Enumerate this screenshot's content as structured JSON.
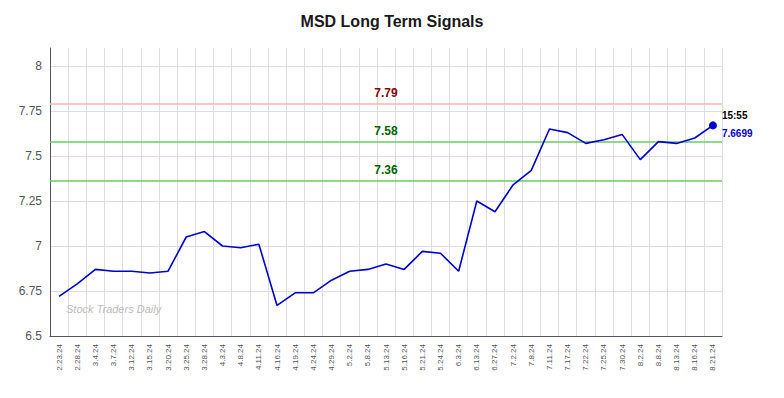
{
  "chart_data": {
    "type": "line",
    "title": "MSD Long Term Signals",
    "categories": [
      "2.23.24",
      "2.28.24",
      "3.4.24",
      "3.7.24",
      "3.12.24",
      "3.15.24",
      "3.20.24",
      "3.25.24",
      "3.28.24",
      "4.3.24",
      "4.8.24",
      "4.11.24",
      "4.16.24",
      "4.19.24",
      "4.24.24",
      "4.29.24",
      "5.2.24",
      "5.8.24",
      "5.13.24",
      "5.16.24",
      "5.21.24",
      "5.24.24",
      "6.3.24",
      "6.13.24",
      "6.27.24",
      "7.2.24",
      "7.8.24",
      "7.11.24",
      "7.17.24",
      "7.22.24",
      "7.25.24",
      "7.30.24",
      "8.2.24",
      "8.8.24",
      "8.13.24",
      "8.16.24",
      "8.21.24"
    ],
    "values": [
      6.72,
      6.79,
      6.87,
      6.86,
      6.86,
      6.85,
      6.86,
      7.05,
      7.08,
      7.0,
      6.99,
      7.01,
      6.67,
      6.74,
      6.74,
      6.81,
      6.86,
      6.87,
      6.9,
      6.87,
      6.97,
      6.96,
      6.86,
      7.25,
      7.19,
      7.34,
      7.42,
      7.65,
      7.63,
      7.57,
      7.59,
      7.62,
      7.48,
      7.58,
      7.57,
      7.6,
      7.67
    ],
    "color": "#0000cc",
    "ylim": [
      6.5,
      8.1
    ],
    "yticks": [
      6.5,
      6.75,
      7,
      7.25,
      7.5,
      7.75,
      8
    ],
    "grid": true,
    "hlines": [
      {
        "value": 7.79,
        "label": "7.79",
        "color": "#ffb3b3",
        "label_color": "#8b0000"
      },
      {
        "value": 7.58,
        "label": "7.58",
        "color": "#66cc66",
        "label_color": "#006400"
      },
      {
        "value": 7.36,
        "label": "7.36",
        "color": "#66cc66",
        "label_color": "#006400"
      }
    ],
    "end_label": "15:55",
    "end_value": "7.6699",
    "watermark": "Stock Traders Daily"
  }
}
